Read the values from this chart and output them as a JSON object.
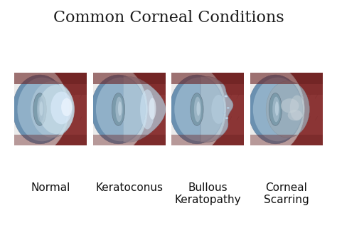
{
  "title": "Common Corneal Conditions",
  "title_fontsize": 16,
  "title_color": "#1a1a1a",
  "background_color": "#ffffff",
  "labels": [
    "Normal",
    "Keratoconus",
    "Bullous\nKeratopathy",
    "Corneal\nScarring"
  ],
  "label_fontsize": 11,
  "label_color": "#111111",
  "n_panels": 4,
  "panel_edge_color": "#b0b0b0",
  "uvea_color": "#8b3030",
  "uvea_dark": "#6a2020",
  "sclera_color": "#e8e8e8",
  "sclera_edge": "#d0d0d0",
  "limbus_blue": "#5580aa",
  "limbus_light": "#88aac8",
  "cornea_normal": "#ccdde8",
  "cornea_highlight": "#e8f4ff",
  "lens_color": "#8099a8",
  "lens_light": "#b8ccd8",
  "lens_edge": "#607080"
}
